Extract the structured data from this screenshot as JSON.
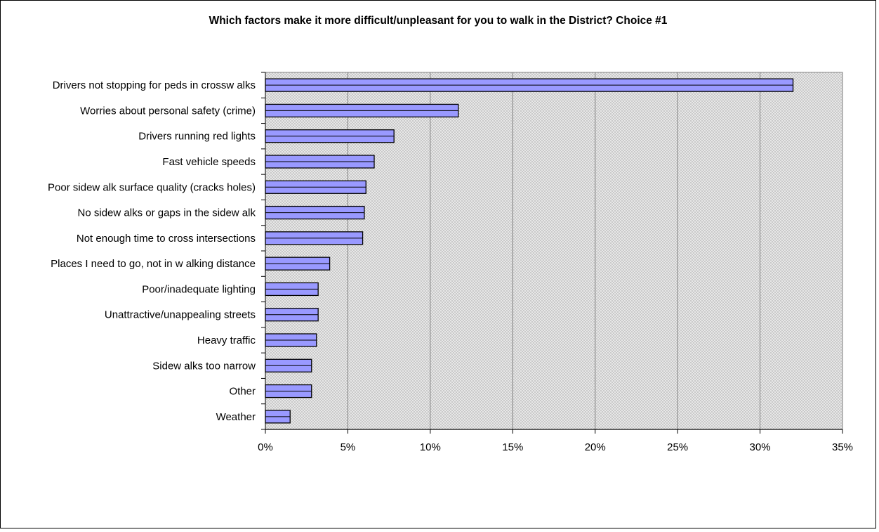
{
  "chart_data": {
    "type": "bar",
    "orientation": "horizontal",
    "title": "Which factors make it more difficult/unpleasant for you to walk in the District? Choice #1",
    "xlabel": "",
    "ylabel": "",
    "categories": [
      "Drivers not stopping for peds in crossw alks",
      "Worries about personal safety (crime)",
      "Drivers running red lights",
      "Fast vehicle speeds",
      "Poor sidew alk surface quality (cracks holes)",
      "No sidew alks or gaps in the sidew alk",
      "Not enough time to cross intersections",
      "Places I need to go, not in w alking distance",
      "Poor/inadequate lighting",
      "Unattractive/unappealing streets",
      "Heavy traffic",
      "Sidew alks too narrow",
      "Other",
      "Weather"
    ],
    "values": [
      32.0,
      11.7,
      7.8,
      6.6,
      6.1,
      6.0,
      5.9,
      3.9,
      3.2,
      3.2,
      3.1,
      2.8,
      2.8,
      1.5
    ],
    "xlim": [
      0,
      35
    ],
    "xticks": [
      0,
      5,
      10,
      15,
      20,
      25,
      30,
      35
    ],
    "xtick_labels": [
      "0%",
      "5%",
      "10%",
      "15%",
      "20%",
      "25%",
      "30%",
      "35%"
    ],
    "grid": true,
    "legend": "none",
    "colors": {
      "bar_fill": "#9999ff",
      "bar_edge": "#000000",
      "plot_bg": "#e6e6e6",
      "gridline": "#808080"
    }
  }
}
